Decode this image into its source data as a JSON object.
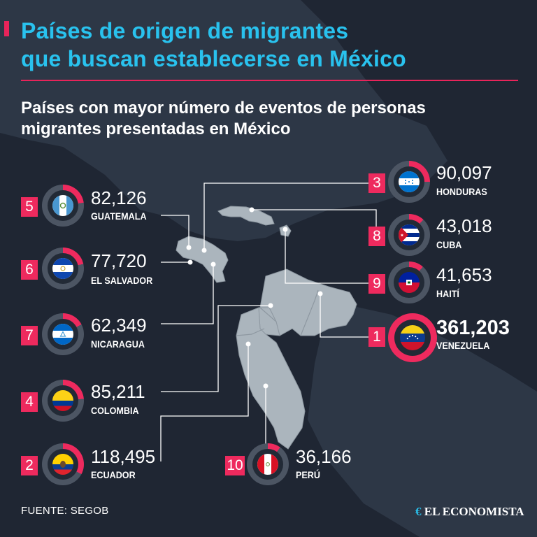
{
  "header": {
    "title_line1": "Países de origen de migrantes",
    "title_line2": "que buscan establecerse en México",
    "subtitle_line1": "Países con mayor número de eventos de personas",
    "subtitle_line2": "migrantes presentadas en México"
  },
  "footer": {
    "source": "FUENTE: SEGOB",
    "brand": "EL ECONOMISTA"
  },
  "colors": {
    "title": "#29c2ee",
    "accent": "#ee2a5e",
    "background": "#1f2633",
    "land": "#abb5bd",
    "ring_track": "#4c5563"
  },
  "chart_data": {
    "type": "table",
    "max_value": 361203,
    "rows": [
      {
        "rank": "1",
        "country": "VENEZUELA",
        "value": 361203,
        "value_label": "361,203",
        "flag": "venezuela-flag-icon"
      },
      {
        "rank": "2",
        "country": "ECUADOR",
        "value": 118495,
        "value_label": "118,495",
        "flag": "ecuador-flag-icon"
      },
      {
        "rank": "3",
        "country": "HONDURAS",
        "value": 90097,
        "value_label": "90,097",
        "flag": "honduras-flag-icon"
      },
      {
        "rank": "4",
        "country": "COLOMBIA",
        "value": 85211,
        "value_label": "85,211",
        "flag": "colombia-flag-icon"
      },
      {
        "rank": "5",
        "country": "GUATEMALA",
        "value": 82126,
        "value_label": "82,126",
        "flag": "guatemala-flag-icon"
      },
      {
        "rank": "6",
        "country": "EL SALVADOR",
        "value": 77720,
        "value_label": "77,720",
        "flag": "el-salvador-flag-icon"
      },
      {
        "rank": "7",
        "country": "NICARAGUA",
        "value": 62349,
        "value_label": "62,349",
        "flag": "nicaragua-flag-icon"
      },
      {
        "rank": "8",
        "country": "CUBA",
        "value": 43018,
        "value_label": "43,018",
        "flag": "cuba-flag-icon"
      },
      {
        "rank": "9",
        "country": "HAITÍ",
        "value": 41653,
        "value_label": "41,653",
        "flag": "haiti-flag-icon"
      },
      {
        "rank": "10",
        "country": "PERÚ",
        "value": 36166,
        "value_label": "36,166",
        "flag": "peru-flag-icon"
      }
    ]
  }
}
